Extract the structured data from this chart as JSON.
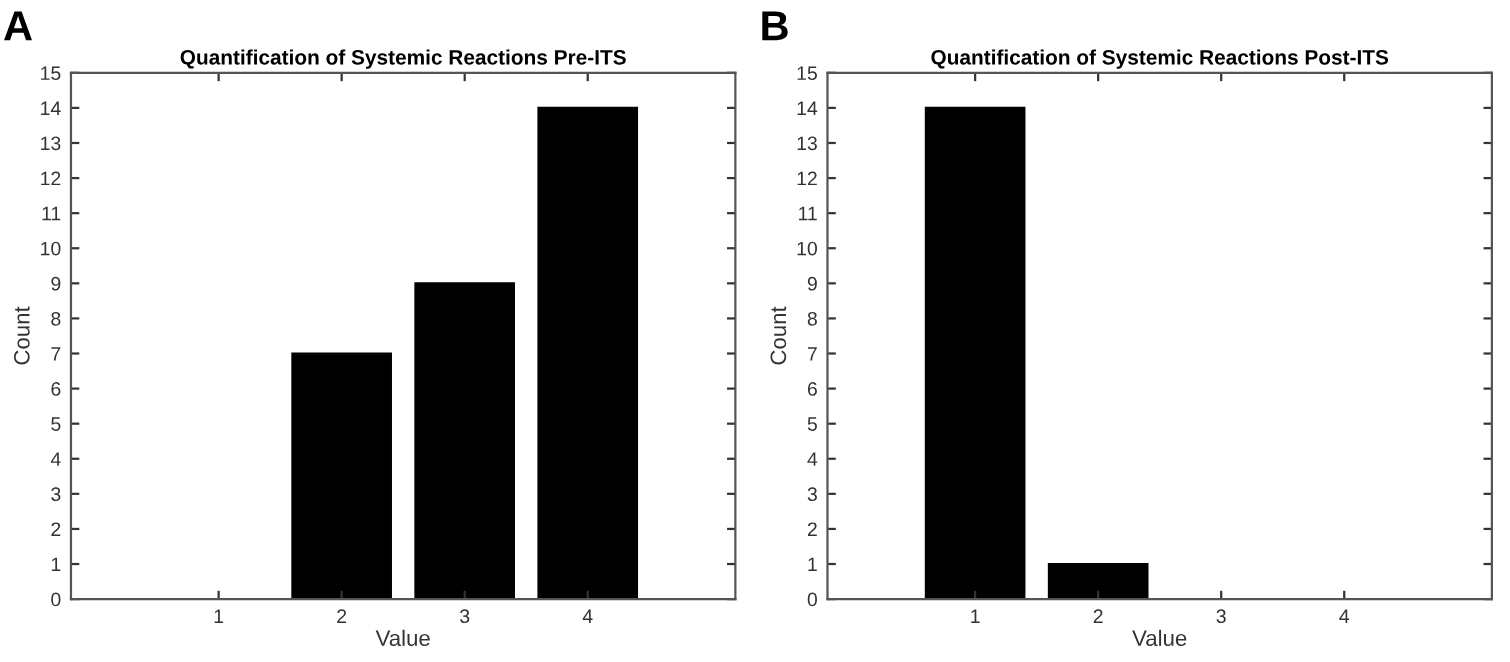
{
  "chart_data": [
    {
      "type": "bar",
      "title": "Quantification of Systemic Reactions Pre-ITS",
      "xlabel": "Value",
      "ylabel": "Count",
      "annotations": [
        "A"
      ],
      "categories": [
        "1",
        "2",
        "3",
        "4"
      ],
      "values": [
        0,
        7,
        9,
        14
      ],
      "color": "#000000",
      "ylim": [
        0,
        15
      ],
      "yticks": [
        0,
        1,
        2,
        3,
        4,
        5,
        6,
        7,
        8,
        9,
        10,
        11,
        12,
        13,
        14,
        15
      ],
      "grid": false
    },
    {
      "type": "bar",
      "title": "Quantification of Systemic Reactions Post-ITS",
      "xlabel": "Value",
      "ylabel": "Count",
      "annotations": [
        "B"
      ],
      "categories": [
        "1",
        "2",
        "3",
        "4"
      ],
      "values": [
        14,
        1,
        0,
        0
      ],
      "color": "#000000",
      "ylim": [
        0,
        15
      ],
      "yticks": [
        0,
        1,
        2,
        3,
        4,
        5,
        6,
        7,
        8,
        9,
        10,
        11,
        12,
        13,
        14,
        15
      ],
      "grid": false
    }
  ]
}
